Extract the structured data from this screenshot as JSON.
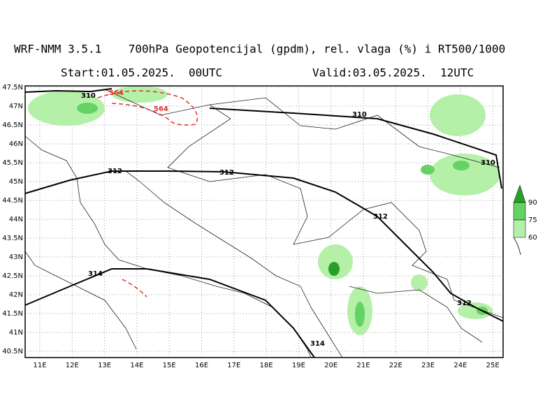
{
  "header": {
    "title": "WRF-NMM 3.5.1    700hPa Geopotencijal (gpdm), rel. vlaga (%) i RT500/1000",
    "start": "Start:01.05.2025.  00UTC",
    "valid": "Valid:03.05.2025.  12UTC"
  },
  "map": {
    "lon_labels": [
      "11E",
      "12E",
      "13E",
      "14E",
      "15E",
      "16E",
      "17E",
      "18E",
      "19E",
      "20E",
      "21E",
      "22E",
      "23E",
      "24E",
      "25E"
    ],
    "lat_labels": [
      "47.5N",
      "47N",
      "46.5N",
      "46N",
      "45.5N",
      "45N",
      "44.5N",
      "44N",
      "43.5N",
      "43N",
      "42.5N",
      "42N",
      "41.5N",
      "41N",
      "40.5N"
    ],
    "contour_labels": [
      "310",
      "310",
      "310",
      "312",
      "312",
      "312",
      "312",
      "314",
      "314",
      "564",
      "564"
    ]
  },
  "legend": {
    "labels": [
      "90",
      "75",
      "60"
    ]
  }
}
